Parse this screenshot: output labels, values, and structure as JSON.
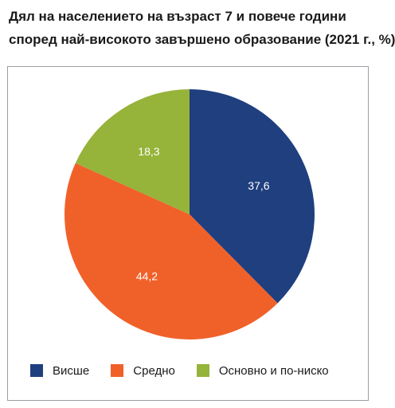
{
  "title": {
    "line1": "Дял на населението на възраст 7 и повече години",
    "line2": "според най-високото завършено образование (2021 г., %)"
  },
  "chart_data": {
    "type": "pie",
    "title": "Дял на населението на възраст 7 и повече години според най-високото завършено образование (2021 г., %)",
    "legend_position": "bottom",
    "slices": [
      {
        "label": "Висше",
        "value": 37.6,
        "value_text": "37,6",
        "color": "#1f3f7f"
      },
      {
        "label": "Средно",
        "value": 44.2,
        "value_text": "44,2",
        "color": "#f0612a"
      },
      {
        "label": "Основно и по-ниско",
        "value": 18.3,
        "value_text": "18,3",
        "color": "#96b33a"
      }
    ]
  }
}
